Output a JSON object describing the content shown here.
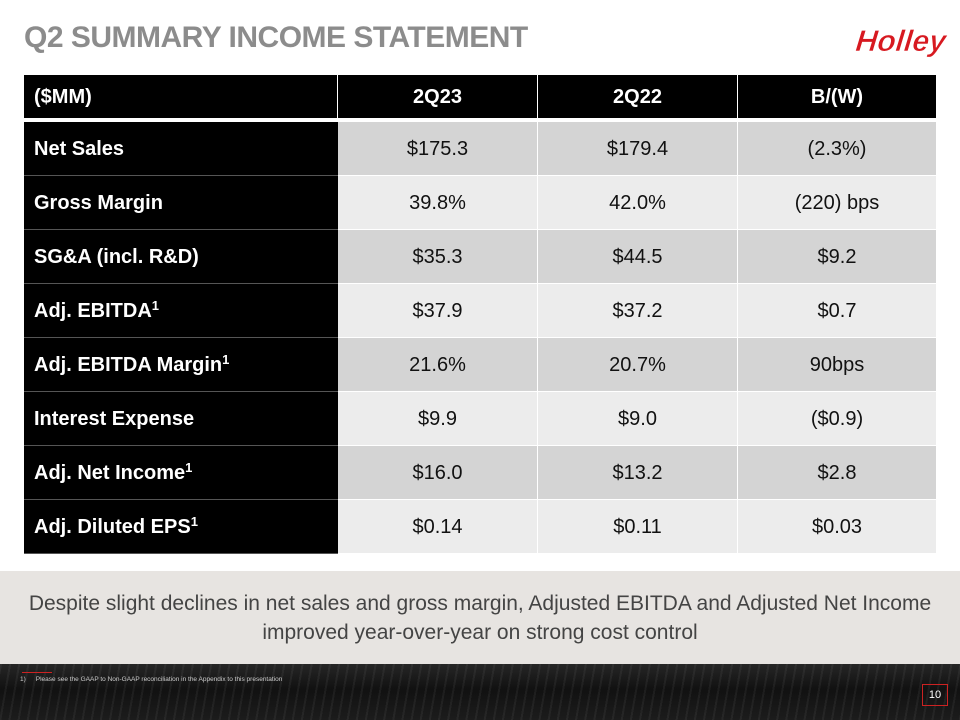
{
  "slide": {
    "title": "Q2 SUMMARY INCOME STATEMENT",
    "logo_text": "Holley",
    "page_number": "10"
  },
  "table": {
    "headers": [
      "($MM)",
      "2Q23",
      "2Q22",
      "B/(W)"
    ],
    "rows": [
      {
        "label": "Net Sales",
        "footnote": "",
        "values": [
          "$175.3",
          "$179.4",
          "(2.3%)"
        ]
      },
      {
        "label": "Gross Margin",
        "footnote": "",
        "values": [
          "39.8%",
          "42.0%",
          "(220) bps"
        ]
      },
      {
        "label": "SG&A (incl. R&D)",
        "footnote": "",
        "values": [
          "$35.3",
          "$44.5",
          "$9.2"
        ]
      },
      {
        "label": "Adj. EBITDA",
        "footnote": "1",
        "values": [
          "$37.9",
          "$37.2",
          "$0.7"
        ]
      },
      {
        "label": "Adj. EBITDA Margin",
        "footnote": "1",
        "values": [
          "21.6%",
          "20.7%",
          "90bps"
        ]
      },
      {
        "label": "Interest Expense",
        "footnote": "",
        "values": [
          "$9.9",
          "$9.0",
          "($0.9)"
        ]
      },
      {
        "label": "Adj. Net Income",
        "footnote": "1",
        "values": [
          "$16.0",
          "$13.2",
          "$2.8"
        ]
      },
      {
        "label": "Adj. Diluted EPS",
        "footnote": "1",
        "values": [
          "$0.14",
          "$0.11",
          "$0.03"
        ]
      }
    ]
  },
  "callout": {
    "text": "Despite slight declines in net sales and gross margin, Adjusted EBITDA and Adjusted Net Income improved year-over-year on strong cost control"
  },
  "footnote": {
    "marker": "1)",
    "text": "Please see the GAAP to Non-GAAP reconciliation in the Appendix to this presentation"
  },
  "colors": {
    "title": "#8c8c8c",
    "brand_red": "#d71920",
    "header_bg": "#000000",
    "row_dark": "#d4d4d4",
    "row_light": "#ececec",
    "callout_bg": "#e7e4e1"
  }
}
